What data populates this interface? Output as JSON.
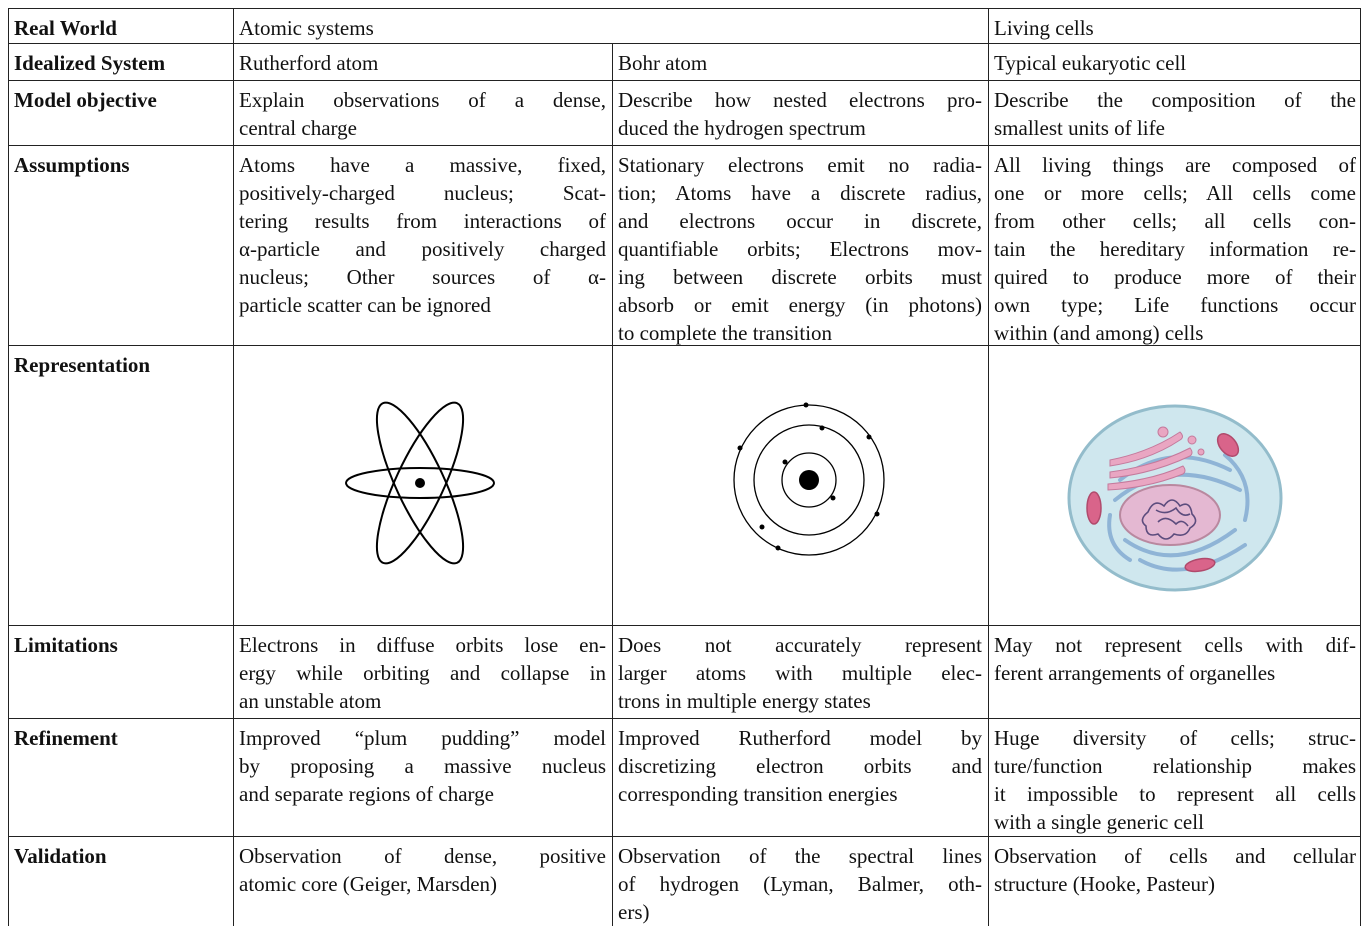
{
  "table": {
    "rows": [
      {
        "header": "Real World",
        "cells": [
          {
            "lines": [
              "Atomic systems"
            ]
          },
          {
            "lines": [
              "Living cells"
            ]
          }
        ]
      },
      {
        "header": "Idealized System",
        "cells": [
          {
            "lines": [
              "Rutherford atom"
            ]
          },
          {
            "lines": [
              "Bohr atom"
            ]
          },
          {
            "lines": [
              "Typical eukaryotic cell"
            ]
          }
        ]
      },
      {
        "header": "Model objective",
        "cells": [
          {
            "lines": [
              "Explain observations of a dense,",
              "central charge"
            ]
          },
          {
            "lines": [
              "Describe how nested electrons pro-",
              "duced the hydrogen spectrum"
            ]
          },
          {
            "lines": [
              "Describe the composition of the",
              "smallest units of life"
            ]
          }
        ]
      },
      {
        "header": "Assumptions",
        "cells": [
          {
            "lines": [
              "Atoms have a massive, fixed,",
              "positively-charged nucleus; Scat-",
              "tering results from interactions of",
              "α-particle and positively charged",
              "nucleus; Other sources of α-",
              "particle scatter can be ignored"
            ]
          },
          {
            "lines": [
              "Stationary electrons emit no radia-",
              "tion; Atoms have a discrete radius,",
              "and electrons occur in discrete,",
              "quantifiable orbits; Electrons mov-",
              "ing between discrete orbits must",
              "absorb or emit energy (in photons)",
              "to complete the transition"
            ]
          },
          {
            "lines": [
              "All living things are composed of",
              "one or more cells; All cells come",
              "from other cells; all cells con-",
              "tain the hereditary information re-",
              "quired to produce more of their",
              "own type; Life functions occur",
              "within (and among) cells"
            ]
          }
        ]
      },
      {
        "header": "Representation",
        "cells": []
      },
      {
        "header": "Limitations",
        "cells": [
          {
            "lines": [
              "Electrons in diffuse orbits lose en-",
              "ergy while orbiting and collapse in",
              "an unstable atom"
            ]
          },
          {
            "lines": [
              "Does not accurately represent",
              "larger atoms with multiple elec-",
              "trons in multiple energy states"
            ]
          },
          {
            "lines": [
              "May not represent cells with dif-",
              "ferent arrangements of organelles"
            ]
          }
        ]
      },
      {
        "header": "Refinement",
        "cells": [
          {
            "lines": [
              "Improved “plum pudding” model",
              "by proposing a massive nucleus",
              "and separate regions of charge"
            ]
          },
          {
            "lines": [
              "Improved Rutherford model by",
              "discretizing electron orbits and",
              "corresponding transition energies"
            ]
          },
          {
            "lines": [
              "Huge diversity of cells; struc-",
              "ture/function relationship makes",
              "it impossible to represent all cells",
              "with a single generic cell"
            ]
          }
        ]
      },
      {
        "header": "Validation",
        "cells": [
          {
            "lines": [
              "Observation of dense, positive",
              "atomic core (Geiger, Marsden)"
            ]
          },
          {
            "lines": [
              "Observation of the spectral lines",
              "of hydrogen (Lyman, Balmer, oth-",
              "ers)"
            ]
          },
          {
            "lines": [
              "Observation of cells and cellular",
              "structure (Hooke, Pasteur)"
            ]
          }
        ]
      }
    ]
  }
}
